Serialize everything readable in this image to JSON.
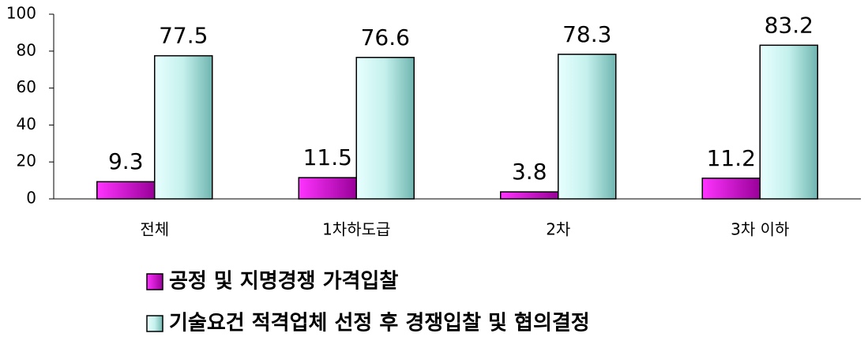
{
  "chart_data": {
    "type": "bar",
    "categories": [
      "전체",
      "1차하도급",
      "2차",
      "3차 이하"
    ],
    "series": [
      {
        "name": "공정 및 지명경쟁 가격입찰",
        "color": "#cc00cc",
        "values": [
          9.3,
          11.5,
          3.8,
          11.2
        ]
      },
      {
        "name": "기술요건 적격업체 선정 후 경쟁입찰 및 협의결정",
        "color": "#ccffff",
        "values": [
          77.5,
          76.6,
          78.3,
          83.2
        ]
      }
    ],
    "ylim": [
      0,
      100
    ],
    "yticks": [
      0,
      20,
      40,
      60,
      80,
      100
    ],
    "grid": false,
    "legend": "bottom"
  }
}
